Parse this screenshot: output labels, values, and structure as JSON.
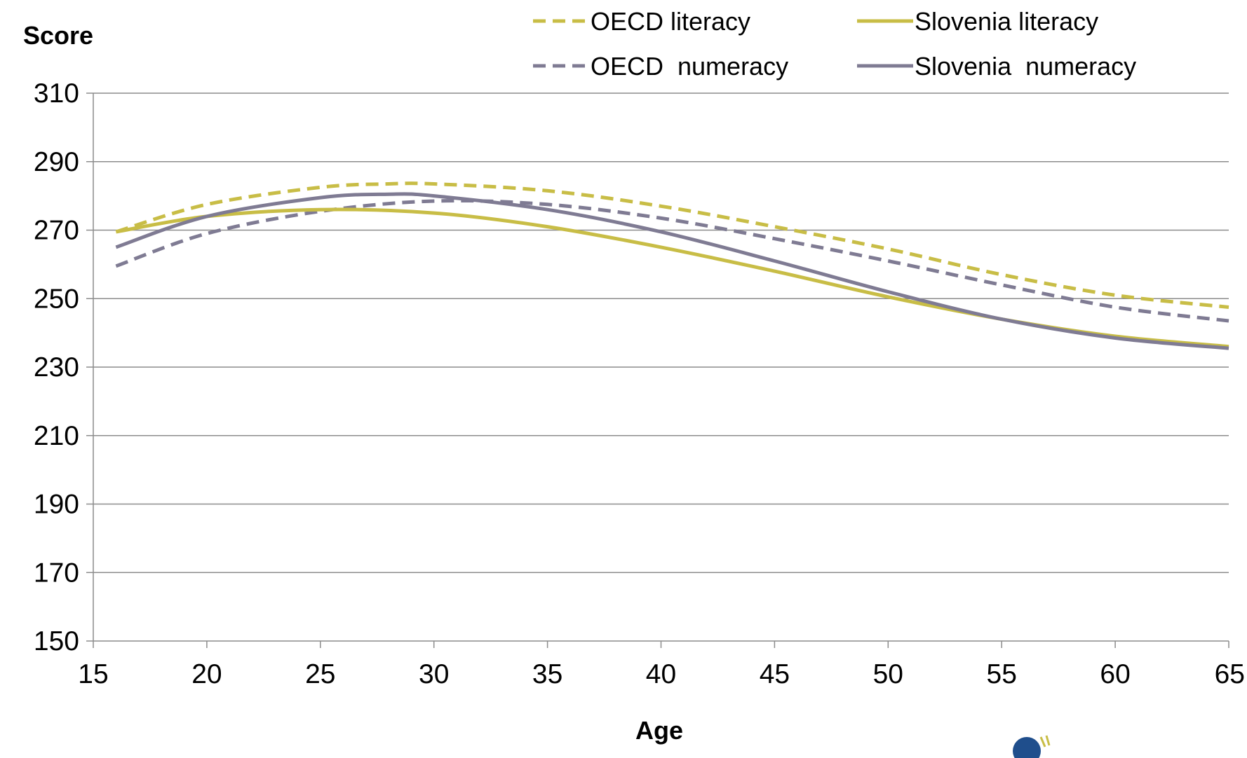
{
  "chart_data": {
    "type": "line",
    "title": "",
    "xlabel": "Age",
    "ylabel": "Score",
    "xlim": [
      15,
      65
    ],
    "ylim": [
      150,
      310
    ],
    "x_ticks": [
      15,
      20,
      25,
      30,
      35,
      40,
      45,
      50,
      55,
      60,
      65
    ],
    "y_ticks": [
      150,
      170,
      190,
      210,
      230,
      250,
      270,
      290,
      310
    ],
    "grid": "horizontal",
    "legend_position": "top-right",
    "series": [
      {
        "name": "OECD literacy",
        "color": "#c8bd46",
        "style": "dashed",
        "points": [
          [
            16,
            269.5
          ],
          [
            20,
            277.5
          ],
          [
            25,
            282.5
          ],
          [
            28,
            283.5
          ],
          [
            30,
            283.5
          ],
          [
            35,
            281.5
          ],
          [
            40,
            277
          ],
          [
            45,
            271
          ],
          [
            50,
            264.5
          ],
          [
            55,
            257
          ],
          [
            60,
            251
          ],
          [
            65,
            247.5
          ]
        ]
      },
      {
        "name": "Slovenia literacy",
        "color": "#c8bd46",
        "style": "solid",
        "points": [
          [
            16,
            269.5
          ],
          [
            20,
            274
          ],
          [
            25,
            276
          ],
          [
            30,
            275
          ],
          [
            35,
            271
          ],
          [
            40,
            265
          ],
          [
            45,
            258
          ],
          [
            50,
            250.5
          ],
          [
            55,
            244
          ],
          [
            60,
            239
          ],
          [
            65,
            236
          ]
        ]
      },
      {
        "name": "OECD  numeracy",
        "color": "#7f7b93",
        "style": "dashed",
        "points": [
          [
            16,
            259.5
          ],
          [
            20,
            269
          ],
          [
            25,
            275.5
          ],
          [
            30,
            278.5
          ],
          [
            35,
            277.5
          ],
          [
            40,
            273.5
          ],
          [
            45,
            267.5
          ],
          [
            50,
            261
          ],
          [
            55,
            254
          ],
          [
            60,
            247.5
          ],
          [
            65,
            243.5
          ]
        ]
      },
      {
        "name": "Slovenia  numeracy",
        "color": "#7f7b93",
        "style": "solid",
        "points": [
          [
            16,
            265
          ],
          [
            20,
            274
          ],
          [
            25,
            279.5
          ],
          [
            28,
            280.5
          ],
          [
            30,
            280
          ],
          [
            35,
            276
          ],
          [
            40,
            269.5
          ],
          [
            45,
            261
          ],
          [
            50,
            252
          ],
          [
            55,
            244
          ],
          [
            60,
            238.5
          ],
          [
            65,
            235.5
          ]
        ]
      }
    ]
  }
}
